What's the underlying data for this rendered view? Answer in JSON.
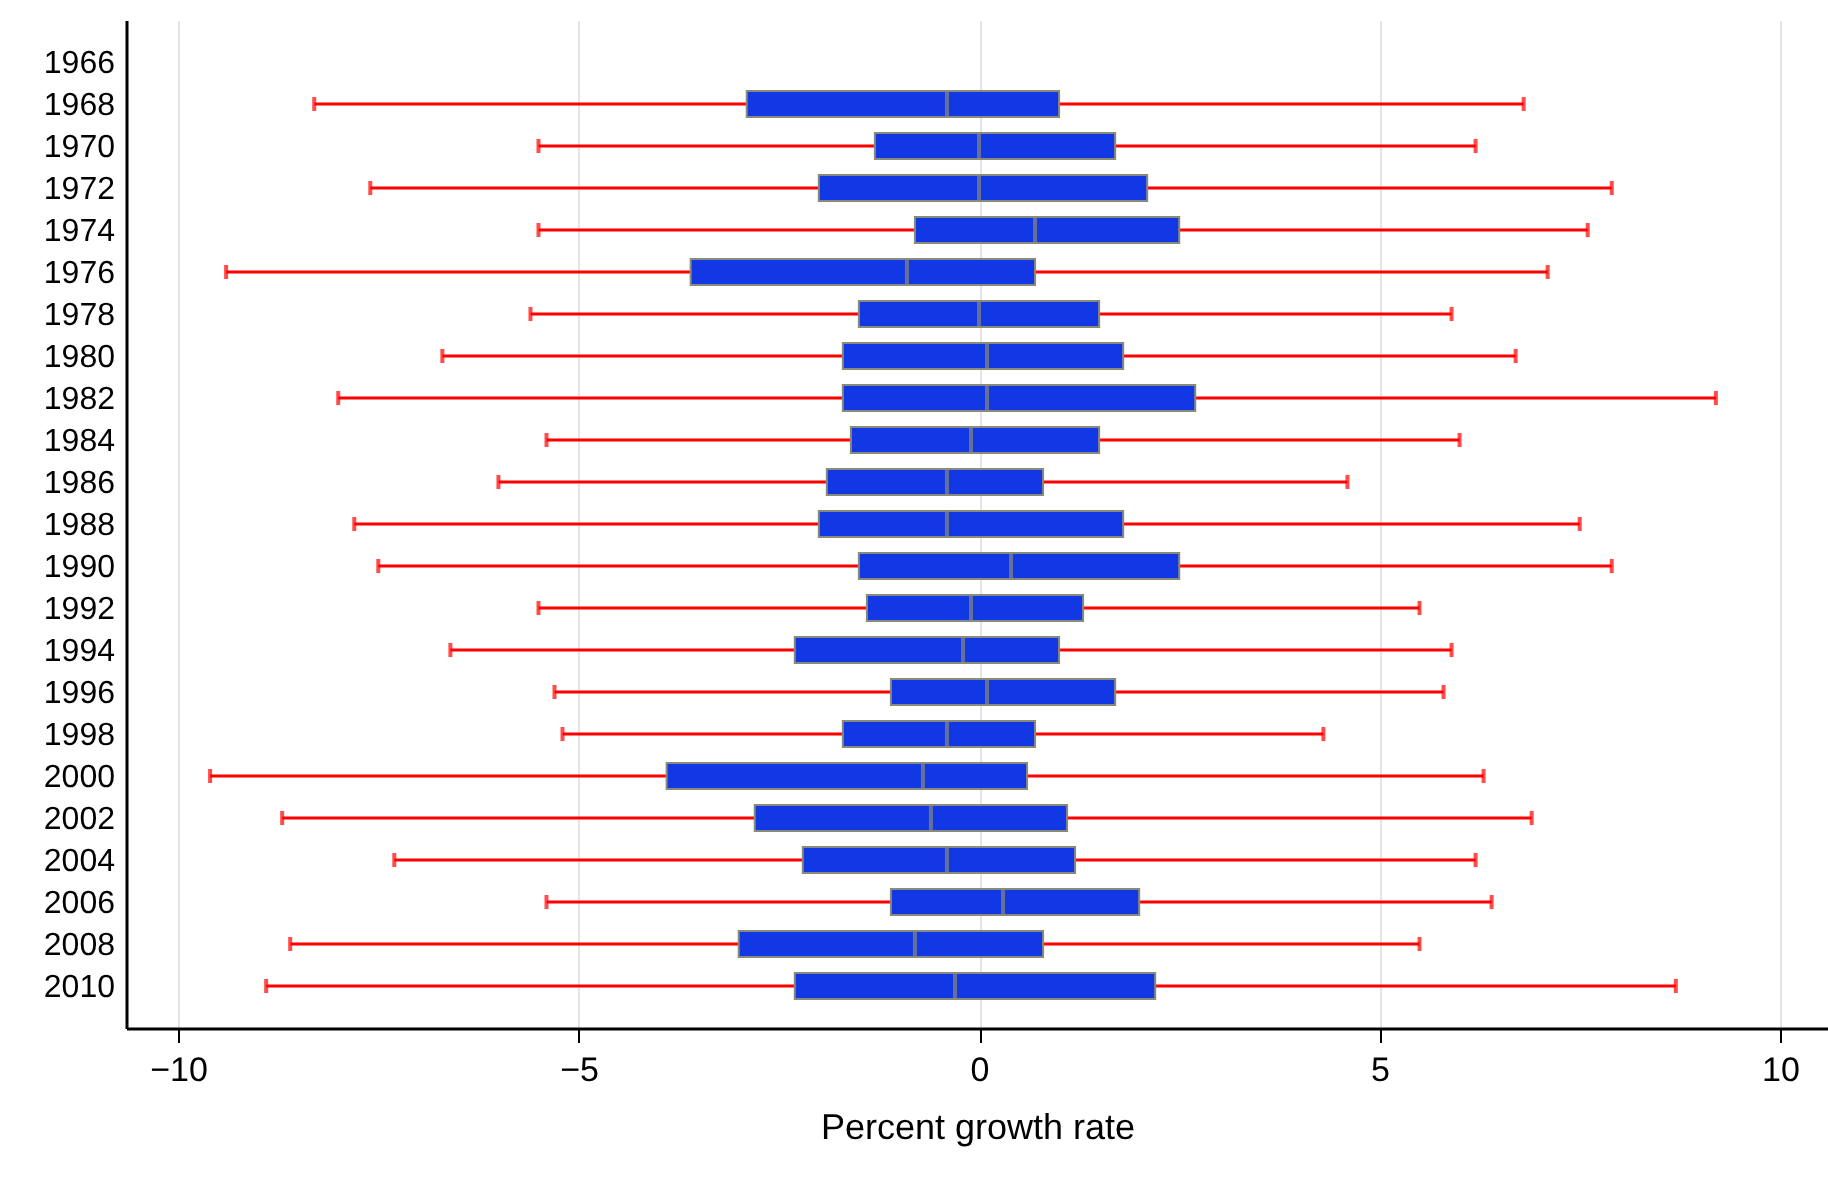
{
  "chart_data": {
    "type": "box",
    "orientation": "horizontal",
    "xlabel": "Percent growth rate",
    "categories": [
      "1966",
      "1968",
      "1970",
      "1972",
      "1974",
      "1976",
      "1978",
      "1980",
      "1982",
      "1984",
      "1986",
      "1988",
      "1990",
      "1992",
      "1994",
      "1996",
      "1998",
      "2000",
      "2002",
      "2004",
      "2006",
      "2008",
      "2010"
    ],
    "xlim": [
      -10.65,
      10.6
    ],
    "xticks": [
      -10,
      -5,
      0,
      5,
      10
    ],
    "grid": "x",
    "series": [
      {
        "color": "#1238e6",
        "boxes": [
          null,
          {
            "low": -8.3,
            "q1": -2.9,
            "median": -0.4,
            "q3": 1.0,
            "high": 6.8
          },
          {
            "low": -5.5,
            "q1": -1.3,
            "median": 0.0,
            "q3": 1.7,
            "high": 6.2
          },
          {
            "low": -7.6,
            "q1": -2.0,
            "median": 0.0,
            "q3": 2.1,
            "high": 7.9
          },
          {
            "low": -5.5,
            "q1": -0.8,
            "median": 0.7,
            "q3": 2.5,
            "high": 7.6
          },
          {
            "low": -9.4,
            "q1": -3.6,
            "median": -0.9,
            "q3": 0.7,
            "high": 7.1
          },
          {
            "low": -5.6,
            "q1": -1.5,
            "median": 0.0,
            "q3": 1.5,
            "high": 5.9
          },
          {
            "low": -6.7,
            "q1": -1.7,
            "median": 0.1,
            "q3": 1.8,
            "high": 6.7
          },
          {
            "low": -8.0,
            "q1": -1.7,
            "median": 0.1,
            "q3": 2.7,
            "high": 9.2
          },
          {
            "low": -5.4,
            "q1": -1.6,
            "median": -0.1,
            "q3": 1.5,
            "high": 6.0
          },
          {
            "low": -6.0,
            "q1": -1.9,
            "median": -0.4,
            "q3": 0.8,
            "high": 4.6
          },
          {
            "low": -7.8,
            "q1": -2.0,
            "median": -0.4,
            "q3": 1.8,
            "high": 7.5
          },
          {
            "low": -7.5,
            "q1": -1.5,
            "median": 0.4,
            "q3": 2.5,
            "high": 7.9
          },
          {
            "low": -5.5,
            "q1": -1.4,
            "median": -0.1,
            "q3": 1.3,
            "high": 5.5
          },
          {
            "low": -6.6,
            "q1": -2.3,
            "median": -0.2,
            "q3": 1.0,
            "high": 5.9
          },
          {
            "low": -5.3,
            "q1": -1.1,
            "median": 0.1,
            "q3": 1.7,
            "high": 5.8
          },
          {
            "low": -5.2,
            "q1": -1.7,
            "median": -0.4,
            "q3": 0.7,
            "high": 4.3
          },
          {
            "low": -9.6,
            "q1": -3.9,
            "median": -0.7,
            "q3": 0.6,
            "high": 6.3
          },
          {
            "low": -8.7,
            "q1": -2.8,
            "median": -0.6,
            "q3": 1.1,
            "high": 6.9
          },
          {
            "low": -7.3,
            "q1": -2.2,
            "median": -0.4,
            "q3": 1.2,
            "high": 6.2
          },
          {
            "low": -5.4,
            "q1": -1.1,
            "median": 0.3,
            "q3": 2.0,
            "high": 6.4
          },
          {
            "low": -8.6,
            "q1": -3.0,
            "median": -0.8,
            "q3": 0.8,
            "high": 5.5
          },
          {
            "low": -8.9,
            "q1": -2.3,
            "median": -0.3,
            "q3": 2.2,
            "high": 8.7
          }
        ]
      }
    ]
  }
}
